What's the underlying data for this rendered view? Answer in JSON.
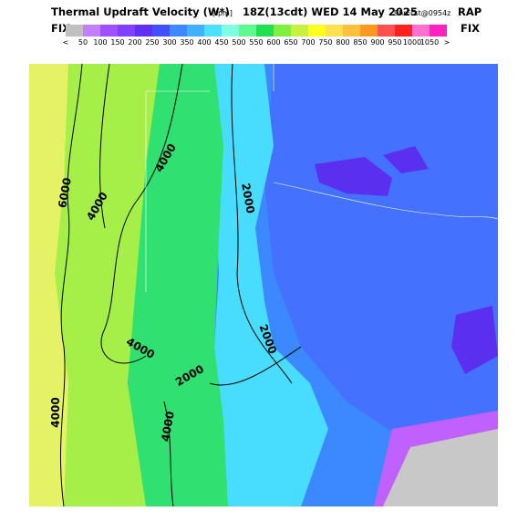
{
  "header": {
    "title": "Thermal Updraft Velocity (W*)",
    "units": "[fpm]",
    "time": "18Z(13cdt) WED 14 May 2025",
    "forecast": "9hrFcst@0954z",
    "model": "RAP"
  },
  "colorbar": {
    "left_label": "FIX",
    "right_label": "FIX",
    "labels": [
      "<",
      "50",
      "100",
      "150",
      "200",
      "250",
      "300",
      "350",
      "400",
      "450",
      "500",
      "550",
      "600",
      "650",
      "700",
      "750",
      "800",
      "850",
      "900",
      "950",
      "1000",
      "1050",
      ">"
    ],
    "colors": [
      "#c0c0c0",
      "#c080ff",
      "#a050ff",
      "#8040ff",
      "#6030f0",
      "#4050ff",
      "#4088ff",
      "#40b0ff",
      "#50e0ff",
      "#80ffe0",
      "#60f890",
      "#20e050",
      "#80f040",
      "#c8f040",
      "#ffff20",
      "#ffe050",
      "#ffc040",
      "#ff9820",
      "#ff5050",
      "#ff2020",
      "#ff70d0",
      "#ff20c0"
    ]
  },
  "map": {
    "contour_labels": [
      "6000",
      "4000",
      "4000",
      "2000",
      "2000",
      "4000",
      "2000",
      "4000",
      "4000"
    ]
  }
}
